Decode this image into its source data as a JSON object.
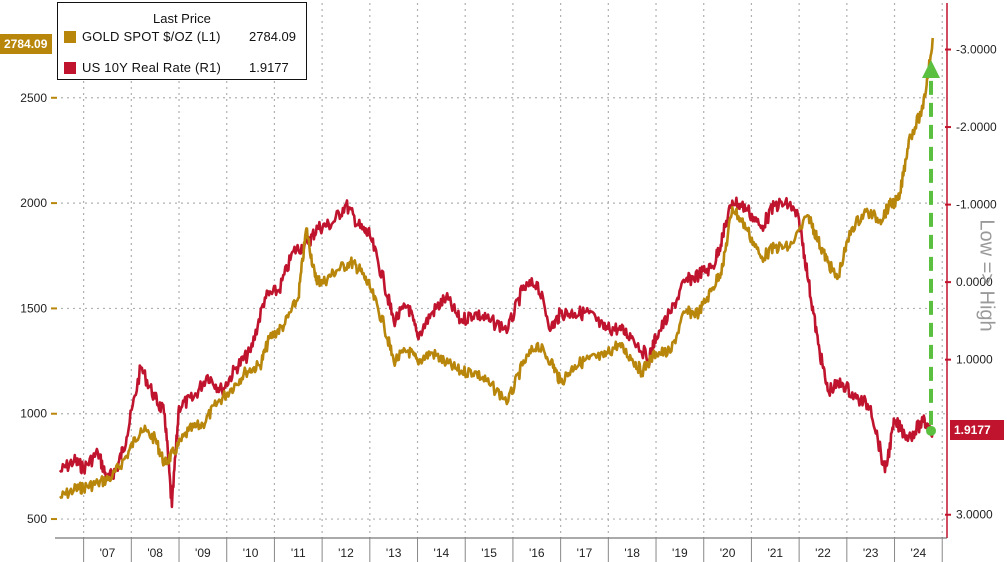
{
  "legend": {
    "title": "Last Price",
    "gold_name": "GOLD SPOT $/OZ  (L1)",
    "gold_value": "2784.09",
    "rate_name": "US 10Y Real Rate  (R1)",
    "rate_value": "1.9177"
  },
  "flags": {
    "gold": "2784.09",
    "rate": "1.9177"
  },
  "side_label": "Low => High",
  "colors": {
    "gold": "#b8860b",
    "rate": "#c0142e",
    "arrow": "#5bbf3f",
    "grid": "#b0b0b0"
  },
  "chart_data": {
    "type": "line",
    "x_tick_labels": [
      "'07",
      "'08",
      "'09",
      "'10",
      "'11",
      "'12",
      "'13",
      "'14",
      "'15",
      "'16",
      "'17",
      "'18",
      "'19",
      "'20",
      "'21",
      "'22",
      "'23",
      "'24"
    ],
    "left_axis": {
      "ticks": [
        500,
        1000,
        1500,
        2000,
        2500
      ],
      "labels": [
        "500",
        "1000",
        "1500",
        "2000",
        "2500"
      ],
      "ylim": [
        410,
        2950
      ]
    },
    "right_axis": {
      "inverted": true,
      "ticks": [
        -3,
        -2,
        -1,
        0,
        1,
        3
      ],
      "labels": [
        "-3.0000",
        "-2.0000",
        "-1.0000",
        "0.0000",
        "1.0000",
        "3.0000"
      ],
      "ylim": [
        -3.6,
        3.3
      ]
    },
    "grid": true,
    "series": [
      {
        "name": "GOLD SPOT $/OZ  (L1)",
        "axis": "left",
        "x": [
          2006.5,
          2006.8,
          2007.0,
          2007.3,
          2007.6,
          2007.9,
          2008.2,
          2008.5,
          2008.7,
          2008.9,
          2009.2,
          2009.5,
          2009.8,
          2010.1,
          2010.4,
          2010.7,
          2010.9,
          2011.2,
          2011.5,
          2011.67,
          2011.85,
          2012.0,
          2012.3,
          2012.6,
          2012.8,
          2013.0,
          2013.3,
          2013.5,
          2013.8,
          2014.0,
          2014.3,
          2014.6,
          2014.9,
          2015.2,
          2015.5,
          2015.9,
          2016.2,
          2016.5,
          2016.8,
          2017.0,
          2017.3,
          2017.6,
          2017.9,
          2018.2,
          2018.5,
          2018.7,
          2019.0,
          2019.3,
          2019.6,
          2019.9,
          2020.2,
          2020.4,
          2020.6,
          2020.9,
          2021.2,
          2021.5,
          2021.8,
          2022.2,
          2022.4,
          2022.6,
          2022.8,
          2023.1,
          2023.4,
          2023.7,
          2023.9,
          2024.1,
          2024.3,
          2024.6,
          2024.8
        ],
        "y": [
          600,
          640,
          650,
          670,
          700,
          800,
          930,
          880,
          760,
          820,
          920,
          950,
          1050,
          1120,
          1200,
          1230,
          1360,
          1420,
          1550,
          1880,
          1650,
          1620,
          1680,
          1720,
          1680,
          1600,
          1420,
          1250,
          1300,
          1250,
          1290,
          1240,
          1200,
          1200,
          1140,
          1060,
          1230,
          1330,
          1250,
          1150,
          1230,
          1260,
          1270,
          1330,
          1260,
          1200,
          1290,
          1290,
          1480,
          1480,
          1600,
          1700,
          1980,
          1880,
          1740,
          1790,
          1790,
          1940,
          1820,
          1720,
          1640,
          1880,
          1960,
          1920,
          1990,
          2020,
          2300,
          2450,
          2784
        ]
      },
      {
        "name": "US 10Y Real Rate  (R1)",
        "axis": "right",
        "x": [
          2006.5,
          2006.8,
          2007.0,
          2007.3,
          2007.5,
          2007.7,
          2007.9,
          2008.2,
          2008.5,
          2008.7,
          2008.85,
          2009.0,
          2009.3,
          2009.6,
          2009.9,
          2010.2,
          2010.5,
          2010.8,
          2011.1,
          2011.4,
          2011.7,
          2011.9,
          2012.2,
          2012.5,
          2012.8,
          2013.0,
          2013.3,
          2013.5,
          2013.8,
          2014.0,
          2014.3,
          2014.6,
          2014.9,
          2015.2,
          2015.5,
          2015.9,
          2016.2,
          2016.5,
          2016.8,
          2017.0,
          2017.3,
          2017.6,
          2017.9,
          2018.2,
          2018.5,
          2018.85,
          2019.0,
          2019.3,
          2019.6,
          2019.9,
          2020.2,
          2020.4,
          2020.6,
          2020.9,
          2021.2,
          2021.5,
          2021.8,
          2022.0,
          2022.2,
          2022.4,
          2022.6,
          2022.9,
          2023.2,
          2023.5,
          2023.8,
          2024.0,
          2024.3,
          2024.6,
          2024.8
        ],
        "y": [
          2.45,
          2.3,
          2.4,
          2.2,
          2.55,
          2.4,
          2.0,
          1.1,
          1.5,
          1.7,
          2.9,
          1.6,
          1.5,
          1.2,
          1.4,
          1.1,
          0.9,
          0.2,
          0.1,
          -0.4,
          -0.5,
          -0.7,
          -0.75,
          -1.0,
          -0.7,
          -0.6,
          0.0,
          0.5,
          0.3,
          0.7,
          0.4,
          0.2,
          0.5,
          0.4,
          0.5,
          0.6,
          0.1,
          0.0,
          0.6,
          0.4,
          0.4,
          0.4,
          0.6,
          0.6,
          0.7,
          1.0,
          0.7,
          0.4,
          0.0,
          -0.1,
          -0.2,
          -0.6,
          -1.05,
          -0.95,
          -0.7,
          -1.0,
          -1.0,
          -0.8,
          0.0,
          0.8,
          1.4,
          1.3,
          1.5,
          1.6,
          2.45,
          1.8,
          2.0,
          1.8,
          1.9177
        ]
      }
    ],
    "annotations": [
      "dashed arrow from 2024 low of real rate up to gold high"
    ]
  }
}
